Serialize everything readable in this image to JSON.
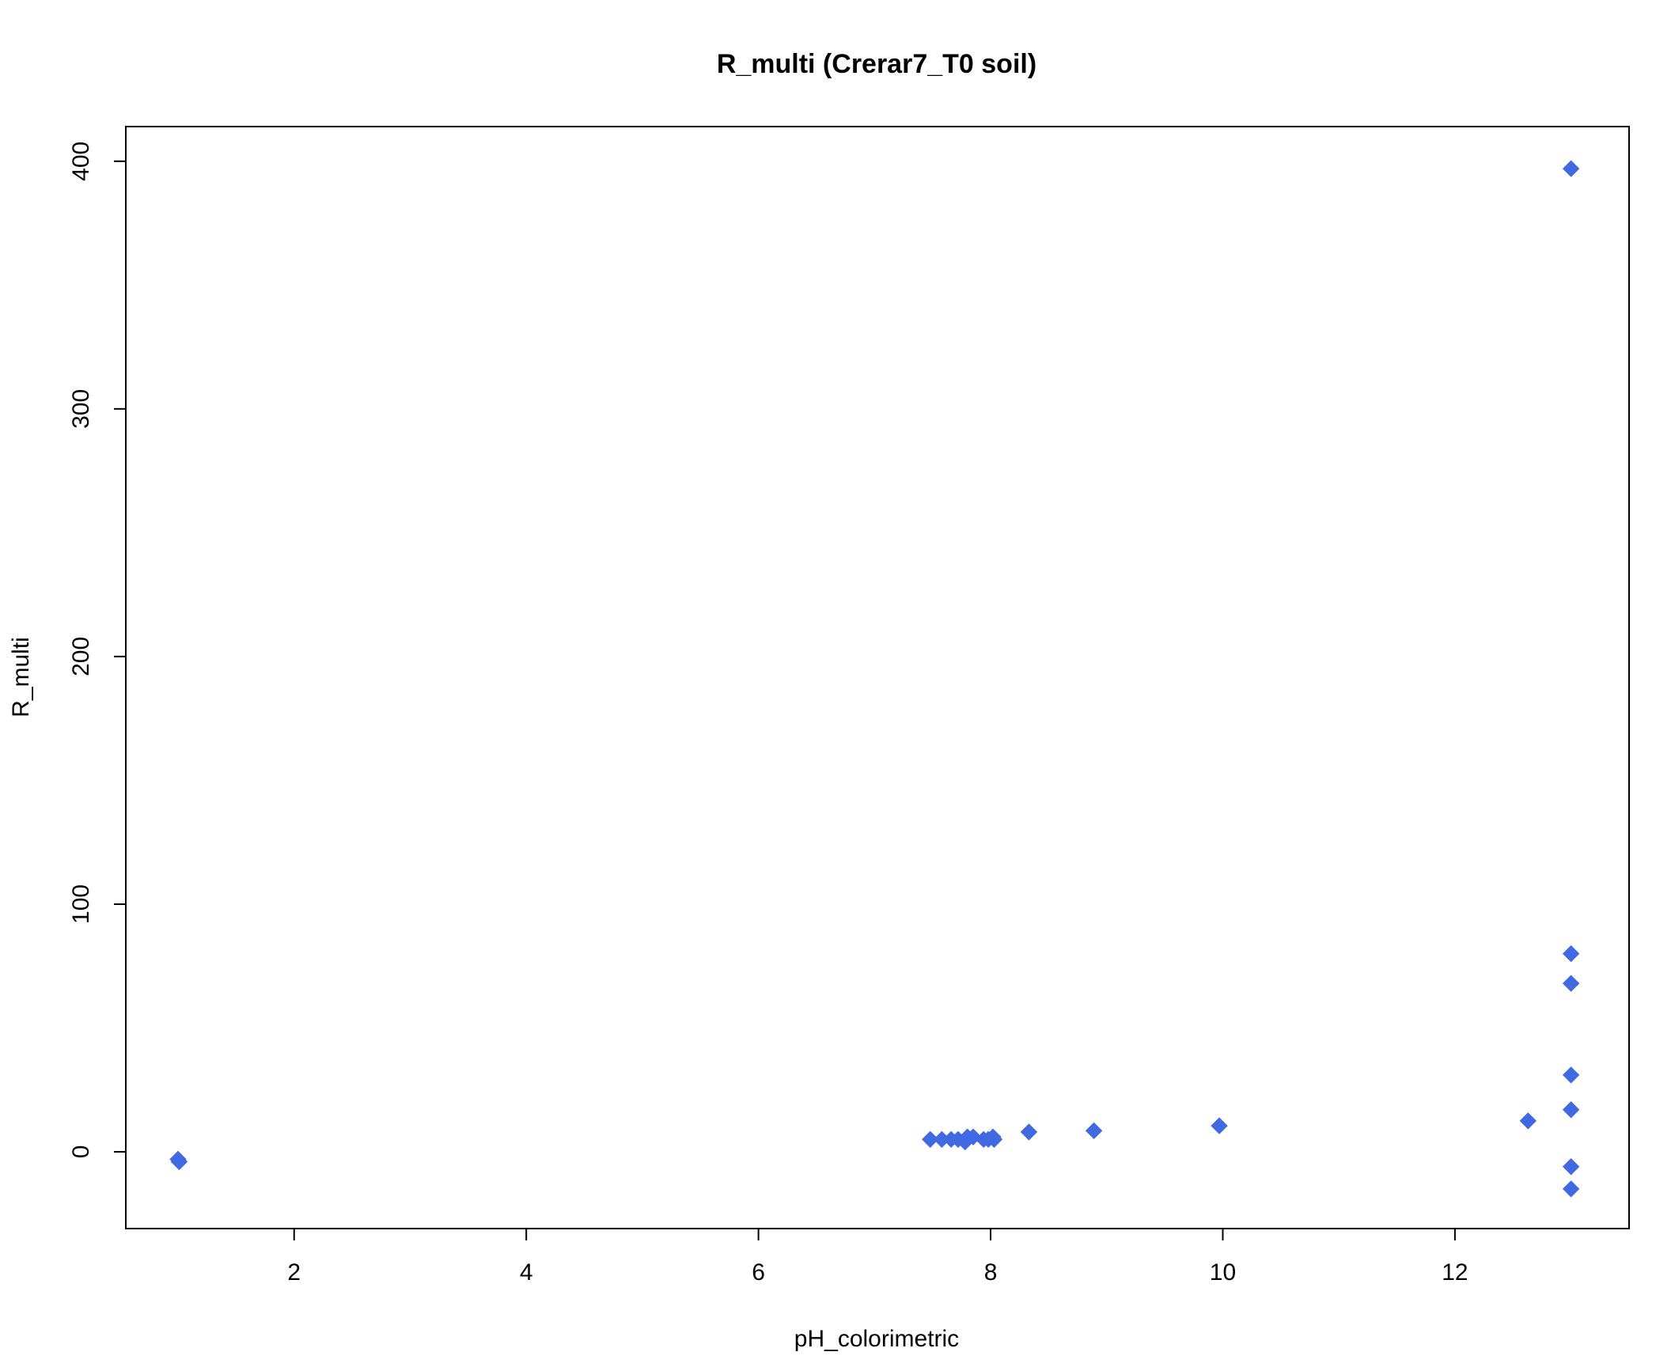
{
  "chart_data": {
    "type": "scatter",
    "title": "R_multi (Crerar7_T0 soil)",
    "xlabel": "pH_colorimetric",
    "ylabel": "R_multi",
    "xlim": [
      0.55,
      13.5
    ],
    "ylim": [
      -31,
      414
    ],
    "x_ticks": [
      2,
      4,
      6,
      8,
      10,
      12
    ],
    "y_ticks": [
      0,
      100,
      200,
      300,
      400
    ],
    "marker": "diamond",
    "marker_color": "#4169E1",
    "points": [
      {
        "x": 1.0,
        "y": -3
      },
      {
        "x": 1.01,
        "y": -4
      },
      {
        "x": 7.48,
        "y": 5
      },
      {
        "x": 7.58,
        "y": 5
      },
      {
        "x": 7.66,
        "y": 5
      },
      {
        "x": 7.72,
        "y": 5
      },
      {
        "x": 7.78,
        "y": 4
      },
      {
        "x": 7.8,
        "y": 6
      },
      {
        "x": 7.85,
        "y": 6
      },
      {
        "x": 7.94,
        "y": 5
      },
      {
        "x": 7.98,
        "y": 5
      },
      {
        "x": 8.02,
        "y": 6
      },
      {
        "x": 8.03,
        "y": 5
      },
      {
        "x": 8.33,
        "y": 8
      },
      {
        "x": 8.89,
        "y": 8.5
      },
      {
        "x": 9.97,
        "y": 10.5
      },
      {
        "x": 12.63,
        "y": 12.5
      },
      {
        "x": 13.0,
        "y": 397
      },
      {
        "x": 13.0,
        "y": 80
      },
      {
        "x": 13.0,
        "y": 68
      },
      {
        "x": 13.0,
        "y": 31
      },
      {
        "x": 13.0,
        "y": 17
      },
      {
        "x": 13.0,
        "y": -6
      },
      {
        "x": 13.0,
        "y": -15
      }
    ]
  }
}
